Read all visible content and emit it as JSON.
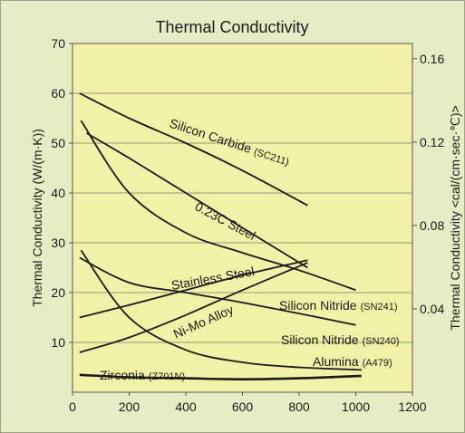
{
  "chart_data": {
    "type": "line",
    "title": "Thermal Conductivity",
    "xlim": [
      0,
      1200
    ],
    "ylim": [
      0,
      70
    ],
    "ylim_right": [
      0,
      0.1673
    ],
    "x_ticks": [
      "0",
      "200",
      "400",
      "600",
      "800",
      "1000",
      "1200"
    ],
    "y_ticks": [
      "10",
      "20",
      "30",
      "40",
      "50",
      "60",
      "70"
    ],
    "y_right_ticks": [
      "0.04",
      "0.08",
      "0.12",
      "0.16"
    ],
    "ylabel": "Thermal Conductivity (W/(m·K))",
    "ylabel_right": "Thermal Conductivity <cal/(cm·sec·℃)>",
    "grid": "horizontal",
    "series": [
      {
        "name": "Silicon Carbide",
        "grade": "(SC211)",
        "x": [
          25,
          200,
          400,
          600,
          830
        ],
        "y": [
          60,
          55,
          50,
          44.5,
          37.5
        ]
      },
      {
        "name": "0.23C Steel",
        "x": [
          50,
          200,
          400,
          600,
          830
        ],
        "y": [
          52,
          47,
          40,
          33,
          25
        ]
      },
      {
        "name": "Silicon Nitride",
        "grade": "(SN241)",
        "x": [
          30,
          200,
          400,
          600,
          800,
          1000
        ],
        "y": [
          54.5,
          40,
          32,
          28,
          24.5,
          20.5
        ]
      },
      {
        "name": "Stainless Steel",
        "x": [
          25,
          200,
          400,
          600,
          830
        ],
        "y": [
          15,
          17.5,
          20.5,
          23.5,
          26.5
        ]
      },
      {
        "name": "Silicon Nitride",
        "grade": "(SN240)",
        "x": [
          25,
          200,
          400,
          600,
          800,
          1000
        ],
        "y": [
          27,
          22,
          20,
          18,
          15.8,
          13.5
        ]
      },
      {
        "name": "Ni-Mo Alloy",
        "x": [
          25,
          200,
          400,
          600,
          830
        ],
        "y": [
          8,
          11,
          15.5,
          20.5,
          26
        ]
      },
      {
        "name": "Alumina",
        "grade": "(A479)",
        "x": [
          30,
          200,
          400,
          600,
          800,
          1020
        ],
        "y": [
          28.5,
          15,
          8.5,
          6,
          5,
          4.5
        ]
      },
      {
        "name": "Zirconia",
        "grade": "(Z701N)",
        "x": [
          25,
          200,
          400,
          600,
          800,
          1020
        ],
        "y": [
          3.5,
          3,
          2.8,
          2.6,
          2.8,
          3.3
        ]
      }
    ]
  }
}
